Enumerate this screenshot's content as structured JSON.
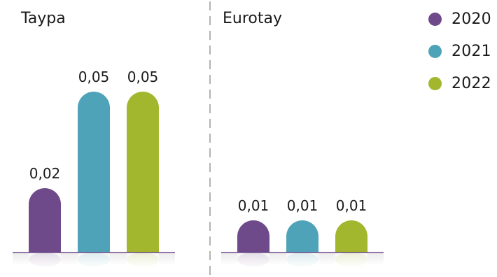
{
  "chart_data": {
    "type": "bar",
    "series": [
      {
        "name": "2020",
        "color": "#6e4a8a"
      },
      {
        "name": "2021",
        "color": "#4fa3b8"
      },
      {
        "name": "2022",
        "color": "#a2b72e"
      }
    ],
    "groups": [
      {
        "title": "Taypa",
        "values": [
          0.02,
          0.05,
          0.05
        ],
        "labels": [
          "0,02",
          "0,05",
          "0,05"
        ]
      },
      {
        "title": "Eurotay",
        "values": [
          0.01,
          0.01,
          0.01
        ],
        "labels": [
          "0,01",
          "0,01",
          "0,01"
        ]
      }
    ],
    "ylim": [
      0,
      0.05
    ],
    "legend_position": "top-right"
  }
}
